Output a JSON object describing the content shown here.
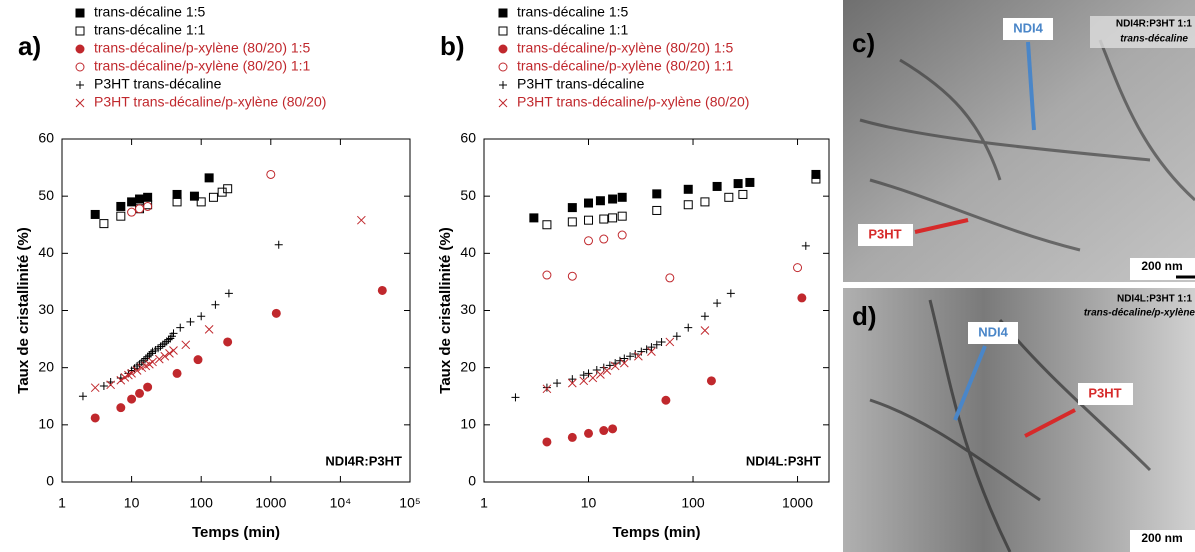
{
  "chart_data": [
    {
      "type": "scatter",
      "panel": "a)",
      "annotation": "NDI4R:P3HT",
      "x_label": "Temps (min)",
      "y_label": "Taux de cristallinité (%)",
      "log_x": true,
      "xlim": [
        1,
        100000
      ],
      "ylim": [
        0,
        60
      ],
      "xticks": [
        1,
        10,
        100,
        1000,
        {
          "value": 10000,
          "label": "10⁴"
        },
        {
          "value": 100000,
          "label": "10⁵"
        }
      ],
      "yticks": [
        0,
        10,
        20,
        30,
        40,
        50,
        60
      ],
      "series": [
        {
          "name": "trans-décaline 1:5",
          "color": "#000000",
          "marker": "square",
          "x": [
            3,
            7,
            10,
            13,
            17,
            45,
            80,
            130
          ],
          "values": [
            46.8,
            48.2,
            49,
            49.5,
            49.8,
            50.3,
            50,
            53.2
          ]
        },
        {
          "name": "trans-décaline 1:1",
          "color": "#000000",
          "marker": "square-open",
          "x": [
            4,
            7,
            13,
            17,
            45,
            100,
            150,
            200,
            240
          ],
          "values": [
            45.2,
            46.5,
            47.8,
            48.5,
            49,
            49,
            49.8,
            50.7,
            51.3
          ]
        },
        {
          "name": "trans-décaline/p-xylène (80/20) 1:5",
          "color": "#c0282d",
          "marker": "circle",
          "x": [
            3,
            7,
            10,
            13,
            17,
            45,
            90,
            240,
            1200,
            40000
          ],
          "values": [
            11.2,
            13,
            14.5,
            15.5,
            16.6,
            19,
            21.4,
            24.5,
            29.5,
            33.5
          ]
        },
        {
          "name": "trans-décaline/p-xylène (80/20) 1:1",
          "color": "#c0282d",
          "marker": "circle-open",
          "x": [
            10,
            13,
            17,
            1000
          ],
          "values": [
            47.2,
            47.8,
            48.2,
            53.8
          ]
        },
        {
          "name": "P3HT trans-décaline",
          "color": "#000000",
          "marker": "plus",
          "x": [
            2,
            4,
            5,
            7,
            9,
            10,
            11,
            12,
            13,
            14,
            15,
            16,
            17,
            18,
            19,
            20,
            22,
            24,
            26,
            28,
            30,
            32,
            34,
            36,
            38,
            40,
            50,
            70,
            100,
            160,
            250,
            1300
          ],
          "values": [
            15,
            16.8,
            17.5,
            18.2,
            19,
            19.5,
            19.9,
            20.3,
            20.6,
            21,
            21.3,
            21.6,
            21.9,
            22.2,
            22.5,
            22.8,
            23.1,
            23.4,
            23.7,
            24,
            24.3,
            24.6,
            24.9,
            25.1,
            25.5,
            26,
            27,
            28,
            29,
            31,
            33,
            41.5
          ]
        },
        {
          "name": "P3HT trans-décaline/p-xylène (80/20)",
          "color": "#c0282d",
          "marker": "x",
          "x": [
            3,
            5,
            7,
            8,
            9,
            10,
            12,
            14,
            16,
            18,
            20,
            25,
            30,
            35,
            40,
            60,
            130,
            20000
          ],
          "values": [
            16.5,
            17,
            17.8,
            18.3,
            18.7,
            19,
            19.5,
            20,
            20.3,
            20.6,
            21,
            21.5,
            22,
            22.5,
            23,
            24,
            26.7,
            45.8
          ]
        }
      ]
    },
    {
      "type": "scatter",
      "panel": "b)",
      "annotation": "NDI4L:P3HT",
      "x_label": "Temps (min)",
      "y_label": "Taux de cristallinité (%)",
      "log_x": true,
      "xlim": [
        1,
        2000
      ],
      "ylim": [
        0,
        60
      ],
      "xticks": [
        1,
        10,
        100,
        1000
      ],
      "yticks": [
        0,
        10,
        20,
        30,
        40,
        50,
        60
      ],
      "series": [
        {
          "name": "trans-décaline 1:5",
          "color": "#000000",
          "marker": "square",
          "x": [
            3,
            7,
            10,
            13,
            17,
            21,
            45,
            90,
            170,
            270,
            350,
            1500
          ],
          "values": [
            46.2,
            48,
            48.8,
            49.2,
            49.5,
            49.8,
            50.4,
            51.2,
            51.7,
            52.2,
            52.4,
            53.8
          ]
        },
        {
          "name": "trans-décaline 1:1",
          "color": "#000000",
          "marker": "square-open",
          "x": [
            4,
            7,
            10,
            14,
            17,
            21,
            45,
            90,
            130,
            220,
            300,
            1500
          ],
          "values": [
            45,
            45.5,
            45.8,
            46,
            46.2,
            46.5,
            47.5,
            48.5,
            49,
            49.8,
            50.3,
            53
          ]
        },
        {
          "name": "trans-décaline/p-xylène (80/20) 1:5",
          "color": "#c0282d",
          "marker": "circle",
          "x": [
            4,
            7,
            10,
            14,
            17,
            55,
            150,
            1100
          ],
          "values": [
            7,
            7.8,
            8.5,
            9,
            9.3,
            14.3,
            17.7,
            32.2
          ]
        },
        {
          "name": "trans-décaline/p-xylène (80/20) 1:1",
          "color": "#c0282d",
          "marker": "circle-open",
          "x": [
            4,
            7,
            10,
            14,
            21,
            60,
            1000
          ],
          "values": [
            36.2,
            36,
            42.2,
            42.5,
            43.2,
            35.7,
            37.5
          ]
        },
        {
          "name": "P3HT trans-décaline",
          "color": "#000000",
          "marker": "plus",
          "x": [
            2,
            4,
            5,
            7,
            9,
            10,
            12,
            14,
            16,
            18,
            20,
            22,
            25,
            28,
            32,
            36,
            40,
            45,
            50,
            70,
            90,
            130,
            170,
            230,
            1200
          ],
          "values": [
            14.8,
            16.5,
            17.3,
            18,
            18.7,
            19,
            19.6,
            20,
            20.4,
            20.8,
            21.2,
            21.6,
            22,
            22.4,
            22.8,
            23.2,
            23.6,
            24,
            24.5,
            25.5,
            27,
            29,
            31.3,
            33,
            41.3
          ]
        },
        {
          "name": "P3HT trans-décaline/p-xylène (80/20)",
          "color": "#c0282d",
          "marker": "x",
          "x": [
            4,
            7,
            9,
            11,
            13,
            15,
            18,
            22,
            30,
            40,
            60,
            130
          ],
          "values": [
            16.3,
            17.3,
            17.7,
            18.2,
            18.8,
            19.5,
            20.3,
            20.8,
            22,
            22.8,
            24.5,
            26.5
          ]
        }
      ]
    }
  ],
  "images": [
    {
      "panel": "c)",
      "arrow_blue": "NDI4",
      "arrow_red": "P3HT",
      "caption_1": "NDI4R:P3HT 1:1",
      "caption_2": "trans-décaline",
      "scale": "200 nm"
    },
    {
      "panel": "d)",
      "arrow_blue": "NDI4",
      "arrow_red": "P3HT",
      "caption_1": "NDI4L:P3HT 1:1",
      "caption_2": "trans-décaline/p-xylène",
      "scale": "200 nm"
    }
  ]
}
